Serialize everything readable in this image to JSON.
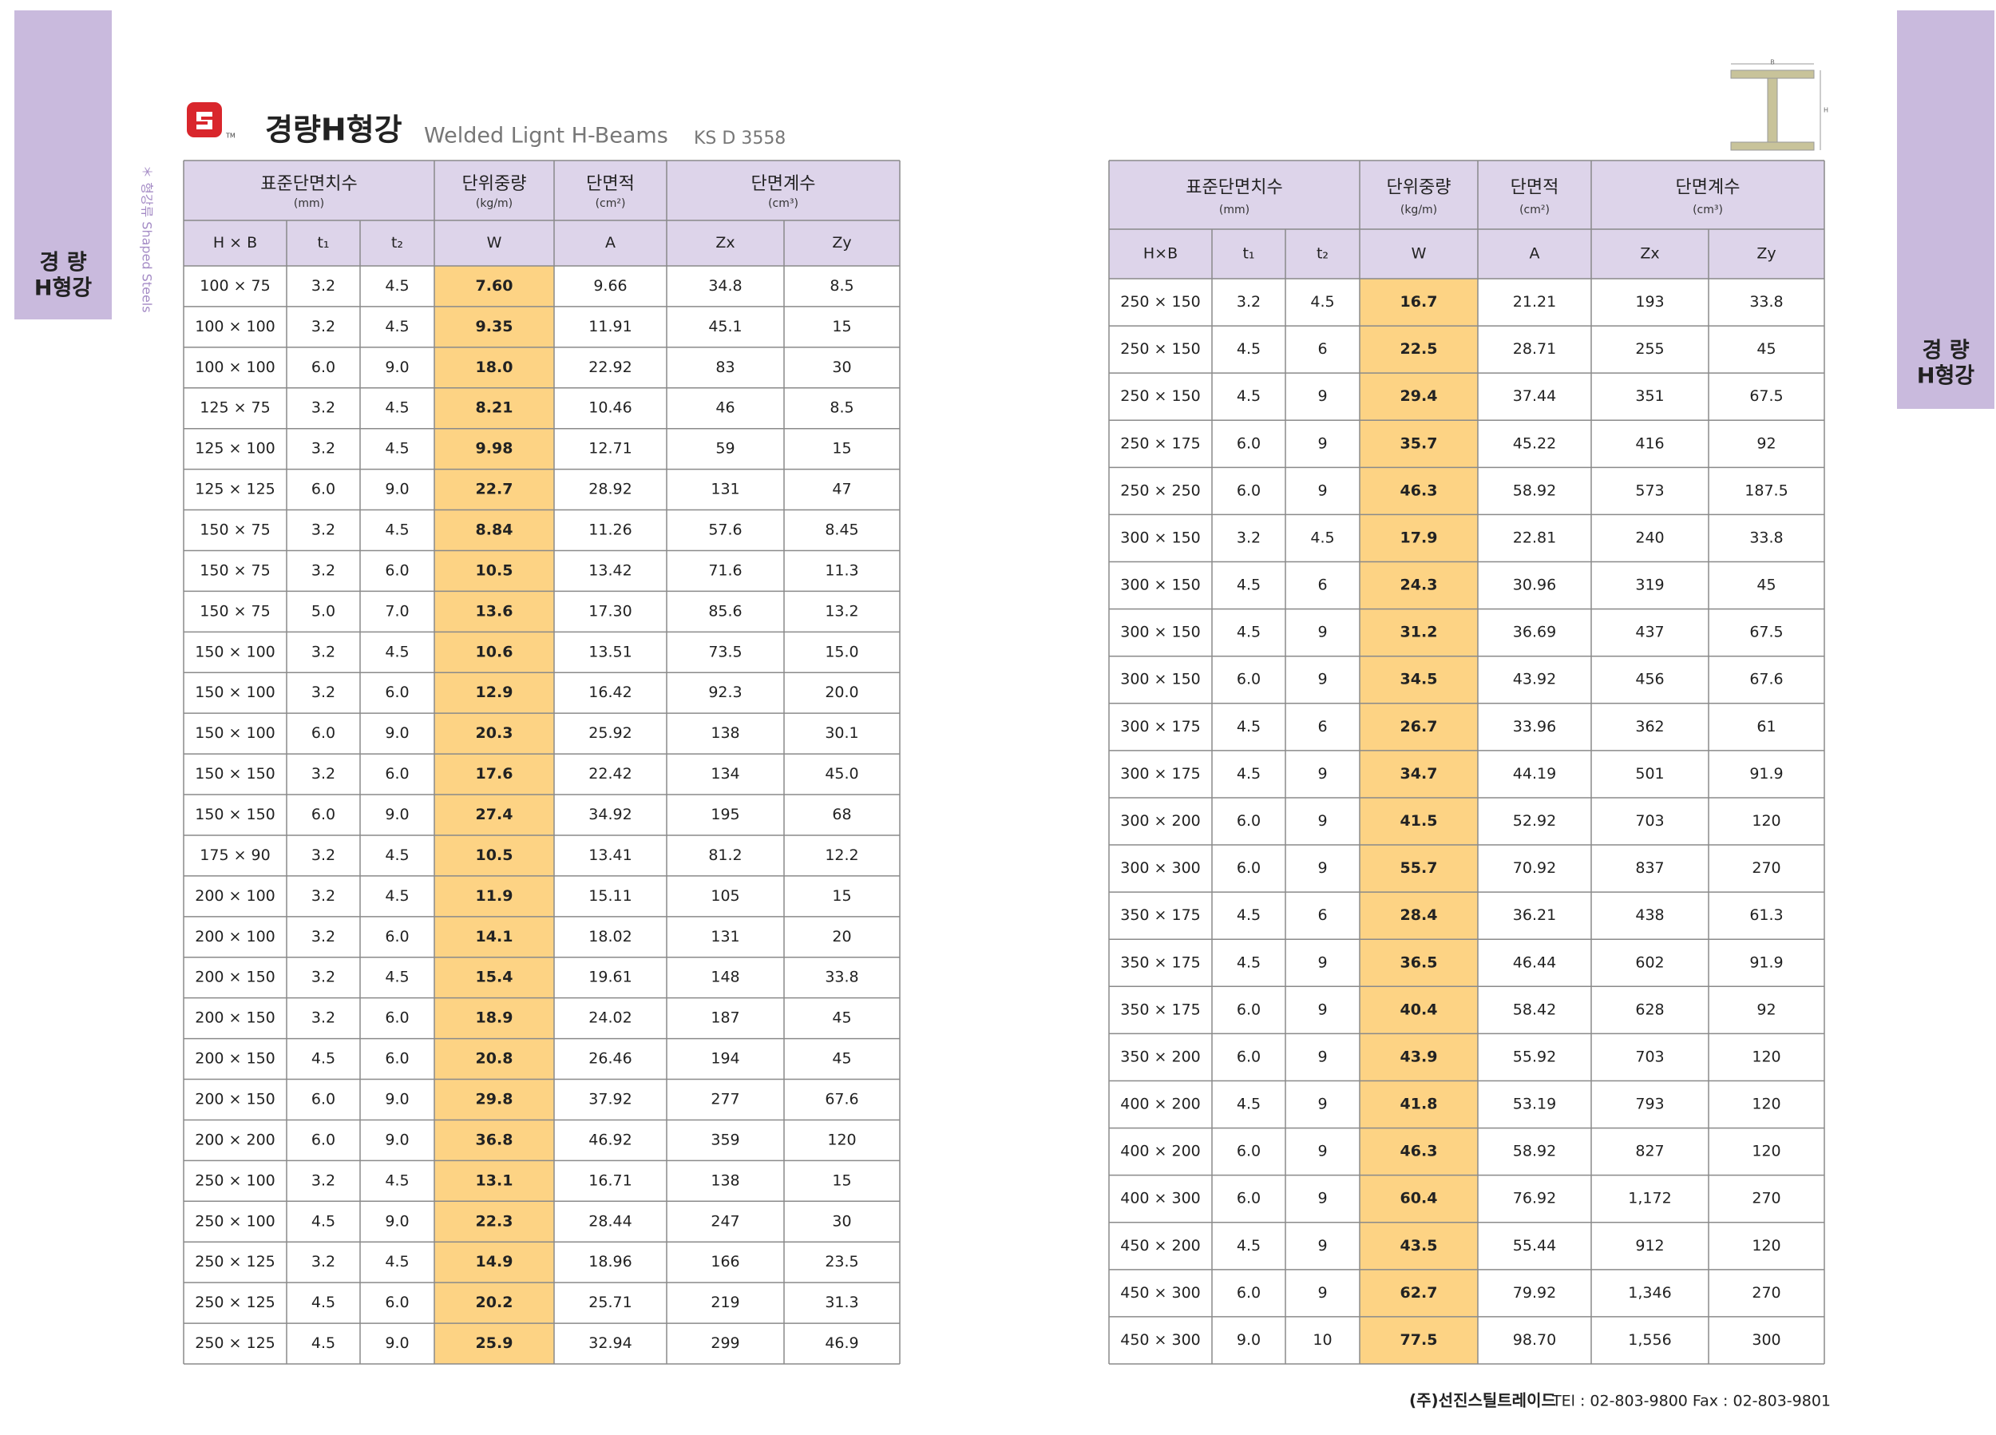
{
  "header": {
    "title": "경량H형강",
    "subtitle": "Welded Lignt H-Beams",
    "standard": "KS D 3558",
    "vertical_label": "＊ 형강류  Shaped Steels"
  },
  "side_tab": [
    "경  량",
    "H형강"
  ],
  "diagram": {
    "b_label": "B",
    "h_label": "H"
  },
  "tables": [
    {
      "groups": [
        {
          "label": "표준단면치수",
          "unit": "(mm)"
        },
        {
          "label": "단위중량",
          "unit": "(kg/m)"
        },
        {
          "label": "단면적",
          "unit": "(cm²)"
        },
        {
          "label": "단면계수",
          "unit": "(cm³)"
        }
      ],
      "columns": [
        "H × B",
        "t₁",
        "t₂",
        "W",
        "A",
        "Zx",
        "Zy"
      ],
      "rows": [
        [
          "100 × 75",
          "3.2",
          "4.5",
          "7.60",
          "9.66",
          "34.8",
          "8.5"
        ],
        [
          "100 × 100",
          "3.2",
          "4.5",
          "9.35",
          "11.91",
          "45.1",
          "15"
        ],
        [
          "100 × 100",
          "6.0",
          "9.0",
          "18.0",
          "22.92",
          "83",
          "30"
        ],
        [
          "125 × 75",
          "3.2",
          "4.5",
          "8.21",
          "10.46",
          "46",
          "8.5"
        ],
        [
          "125 × 100",
          "3.2",
          "4.5",
          "9.98",
          "12.71",
          "59",
          "15"
        ],
        [
          "125 × 125",
          "6.0",
          "9.0",
          "22.7",
          "28.92",
          "131",
          "47"
        ],
        [
          "150 × 75",
          "3.2",
          "4.5",
          "8.84",
          "11.26",
          "57.6",
          "8.45"
        ],
        [
          "150 × 75",
          "3.2",
          "6.0",
          "10.5",
          "13.42",
          "71.6",
          "11.3"
        ],
        [
          "150 × 75",
          "5.0",
          "7.0",
          "13.6",
          "17.30",
          "85.6",
          "13.2"
        ],
        [
          "150 × 100",
          "3.2",
          "4.5",
          "10.6",
          "13.51",
          "73.5",
          "15.0"
        ],
        [
          "150 × 100",
          "3.2",
          "6.0",
          "12.9",
          "16.42",
          "92.3",
          "20.0"
        ],
        [
          "150 × 100",
          "6.0",
          "9.0",
          "20.3",
          "25.92",
          "138",
          "30.1"
        ],
        [
          "150 × 150",
          "3.2",
          "6.0",
          "17.6",
          "22.42",
          "134",
          "45.0"
        ],
        [
          "150 × 150",
          "6.0",
          "9.0",
          "27.4",
          "34.92",
          "195",
          "68"
        ],
        [
          "175 × 90",
          "3.2",
          "4.5",
          "10.5",
          "13.41",
          "81.2",
          "12.2"
        ],
        [
          "200 × 100",
          "3.2",
          "4.5",
          "11.9",
          "15.11",
          "105",
          "15"
        ],
        [
          "200 × 100",
          "3.2",
          "6.0",
          "14.1",
          "18.02",
          "131",
          "20"
        ],
        [
          "200 × 150",
          "3.2",
          "4.5",
          "15.4",
          "19.61",
          "148",
          "33.8"
        ],
        [
          "200 × 150",
          "3.2",
          "6.0",
          "18.9",
          "24.02",
          "187",
          "45"
        ],
        [
          "200 × 150",
          "4.5",
          "6.0",
          "20.8",
          "26.46",
          "194",
          "45"
        ],
        [
          "200 × 150",
          "6.0",
          "9.0",
          "29.8",
          "37.92",
          "277",
          "67.6"
        ],
        [
          "200 × 200",
          "6.0",
          "9.0",
          "36.8",
          "46.92",
          "359",
          "120"
        ],
        [
          "250 × 100",
          "3.2",
          "4.5",
          "13.1",
          "16.71",
          "138",
          "15"
        ],
        [
          "250 × 100",
          "4.5",
          "9.0",
          "22.3",
          "28.44",
          "247",
          "30"
        ],
        [
          "250 × 125",
          "3.2",
          "4.5",
          "14.9",
          "18.96",
          "166",
          "23.5"
        ],
        [
          "250 × 125",
          "4.5",
          "6.0",
          "20.2",
          "25.71",
          "219",
          "31.3"
        ],
        [
          "250 × 125",
          "4.5",
          "9.0",
          "25.9",
          "32.94",
          "299",
          "46.9"
        ]
      ]
    },
    {
      "groups": [
        {
          "label": "표준단면치수",
          "unit": "(mm)"
        },
        {
          "label": "단위중량",
          "unit": "(kg/m)"
        },
        {
          "label": "단면적",
          "unit": "(cm²)"
        },
        {
          "label": "단면계수",
          "unit": "(cm³)"
        }
      ],
      "columns": [
        "H×B",
        "t₁",
        "t₂",
        "W",
        "A",
        "Zx",
        "Zy"
      ],
      "rows": [
        [
          "250 × 150",
          "3.2",
          "4.5",
          "16.7",
          "21.21",
          "193",
          "33.8"
        ],
        [
          "250 × 150",
          "4.5",
          "6",
          "22.5",
          "28.71",
          "255",
          "45"
        ],
        [
          "250 × 150",
          "4.5",
          "9",
          "29.4",
          "37.44",
          "351",
          "67.5"
        ],
        [
          "250 × 175",
          "6.0",
          "9",
          "35.7",
          "45.22",
          "416",
          "92"
        ],
        [
          "250 × 250",
          "6.0",
          "9",
          "46.3",
          "58.92",
          "573",
          "187.5"
        ],
        [
          "300 × 150",
          "3.2",
          "4.5",
          "17.9",
          "22.81",
          "240",
          "33.8"
        ],
        [
          "300 × 150",
          "4.5",
          "6",
          "24.3",
          "30.96",
          "319",
          "45"
        ],
        [
          "300 × 150",
          "4.5",
          "9",
          "31.2",
          "36.69",
          "437",
          "67.5"
        ],
        [
          "300 × 150",
          "6.0",
          "9",
          "34.5",
          "43.92",
          "456",
          "67.6"
        ],
        [
          "300 × 175",
          "4.5",
          "6",
          "26.7",
          "33.96",
          "362",
          "61"
        ],
        [
          "300 × 175",
          "4.5",
          "9",
          "34.7",
          "44.19",
          "501",
          "91.9"
        ],
        [
          "300 × 200",
          "6.0",
          "9",
          "41.5",
          "52.92",
          "703",
          "120"
        ],
        [
          "300 × 300",
          "6.0",
          "9",
          "55.7",
          "70.92",
          "837",
          "270"
        ],
        [
          "350 × 175",
          "4.5",
          "6",
          "28.4",
          "36.21",
          "438",
          "61.3"
        ],
        [
          "350 × 175",
          "4.5",
          "9",
          "36.5",
          "46.44",
          "602",
          "91.9"
        ],
        [
          "350 × 175",
          "6.0",
          "9",
          "40.4",
          "58.42",
          "628",
          "92"
        ],
        [
          "350 × 200",
          "6.0",
          "9",
          "43.9",
          "55.92",
          "703",
          "120"
        ],
        [
          "400 × 200",
          "4.5",
          "9",
          "41.8",
          "53.19",
          "793",
          "120"
        ],
        [
          "400 × 200",
          "6.0",
          "9",
          "46.3",
          "58.92",
          "827",
          "120"
        ],
        [
          "400 × 300",
          "6.0",
          "9",
          "60.4",
          "76.92",
          "1,172",
          "270"
        ],
        [
          "450 × 200",
          "4.5",
          "9",
          "43.5",
          "55.44",
          "912",
          "120"
        ],
        [
          "450 × 300",
          "6.0",
          "9",
          "62.7",
          "79.92",
          "1,346",
          "270"
        ],
        [
          "450 × 300",
          "9.0",
          "10",
          "77.5",
          "98.70",
          "1,556",
          "300"
        ]
      ]
    }
  ],
  "footer": {
    "company": "(주)선진스틸트레이드",
    "contact": "TEl : 02-803-9800   Fax : 02-803-9801"
  }
}
